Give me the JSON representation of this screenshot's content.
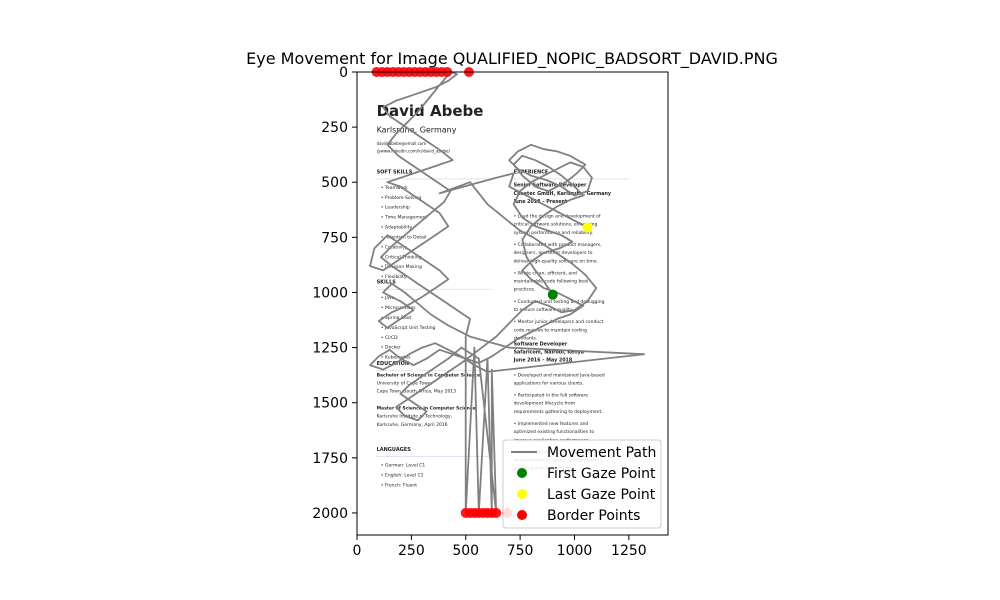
{
  "chart_data": {
    "type": "scatter",
    "title": "Eye Movement for Image QUALIFIED_NOPIC_BADSORT_DAVID.PNG",
    "xlabel": "",
    "ylabel": "",
    "xlim": [
      0,
      1430
    ],
    "ylim": [
      2100,
      0
    ],
    "x_ticks": [
      0,
      250,
      500,
      750,
      1000,
      1250
    ],
    "y_ticks": [
      0,
      250,
      500,
      750,
      1000,
      1250,
      1500,
      1750,
      2000
    ],
    "x_tick_labels": [
      "0",
      "250",
      "500",
      "750",
      "1000",
      "1250"
    ],
    "y_tick_labels": [
      "0",
      "250",
      "500",
      "750",
      "1000",
      "1250",
      "1500",
      "1750",
      "2000"
    ],
    "grid": false,
    "legend_position": "lower-right",
    "legend": [
      "Movement Path",
      "First Gaze Point",
      "Last Gaze Point",
      "Border Points"
    ],
    "colors": {
      "path": "#808080",
      "first": "#008000",
      "last": "#ffff00",
      "border": "#ff0000",
      "accent_text": "#5b7cc4"
    },
    "background_image": {
      "extent_x": [
        0,
        1430
      ],
      "extent_y": [
        0,
        2100
      ],
      "header_name": "David Abebe",
      "header_location": "Karlsruhe, Germany",
      "contact_lines": [
        "david.abebe@email.com",
        "@www.linkedin.com/in/david_abebe/"
      ],
      "sections": [
        {
          "heading": "SOFT SKILLS",
          "x": 90,
          "y": 460,
          "items": [
            "Teamwork",
            "Problem-Solving",
            "Leadership",
            "Time Management",
            "Adaptability",
            "Attention to Detail",
            "Creativity",
            "Critical Thinking",
            "Decision Making",
            "Flexibility"
          ]
        },
        {
          "heading": "SKILLS",
          "x": 90,
          "y": 960,
          "items": [
            "Java",
            "Microservices",
            "Spring Boot",
            "JavaScript Unit Testing",
            "CI/CD",
            "Docker",
            "Kubernetes"
          ]
        },
        {
          "heading": "EDUCATION",
          "x": 90,
          "y": 1330,
          "items": []
        },
        {
          "heading": "LANGUAGES",
          "x": 90,
          "y": 1720,
          "items": [
            "German: Level C1",
            "English: Level C1",
            "French: Fluent"
          ]
        },
        {
          "heading": "EXPERIENCE",
          "x": 720,
          "y": 460,
          "items": []
        }
      ],
      "education_lines": [
        "Bachelor of Science in Computer Science",
        "University of Cape Town,",
        "Cape Town, South Africa, May 2013",
        "Master of Science in Computer Science",
        "Karlsruhe Institute of Technology,",
        "Karlsruhe, Germany, April 2016"
      ],
      "experience_blocks": [
        {
          "title": "Senior Software Developer",
          "company": "Cheetec GmbH, Karlsruhe, Germany",
          "dates": "June 2018 – Present",
          "y": 520,
          "bullets": [
            "Lead the design and development of critical software solutions, enhancing system performance and reliability.",
            "Collaborated with product managers, designers, and other developers to deliver high-quality software on time.",
            "Wrote clean, efficient, and maintainable code following best practices.",
            "Conducted unit testing and debugging to ensure software quality.",
            "Mentor junior developers and conduct code reviews to maintain coding standards."
          ]
        },
        {
          "title": "Software Developer",
          "company": "Safaricom, Nairobi, Kenya",
          "dates": "June 2016 – May 2018",
          "y": 1240,
          "bullets": [
            "Developed and maintained Java-based applications for various clients.",
            "Participated in the full software development lifecycle from requirements gathering to deployment.",
            "Implemented new features and optimized existing functionalities to improve application performance.",
            "Worked closely with the QA team and environments to design and implement planning and deployment."
          ]
        }
      ]
    },
    "first_point": {
      "x": 900,
      "y": 1010
    },
    "last_point": {
      "x": 1060,
      "y": 705
    },
    "border_points": [
      {
        "x": 90,
        "y": 0
      },
      {
        "x": 115,
        "y": 0
      },
      {
        "x": 140,
        "y": 0
      },
      {
        "x": 165,
        "y": 0
      },
      {
        "x": 190,
        "y": 0
      },
      {
        "x": 215,
        "y": 0
      },
      {
        "x": 240,
        "y": 0
      },
      {
        "x": 265,
        "y": 0
      },
      {
        "x": 290,
        "y": 0
      },
      {
        "x": 315,
        "y": 0
      },
      {
        "x": 340,
        "y": 0
      },
      {
        "x": 365,
        "y": 0
      },
      {
        "x": 390,
        "y": 0
      },
      {
        "x": 415,
        "y": 0
      },
      {
        "x": 515,
        "y": 0
      },
      {
        "x": 500,
        "y": 2000
      },
      {
        "x": 520,
        "y": 2000
      },
      {
        "x": 540,
        "y": 2000
      },
      {
        "x": 560,
        "y": 2000
      },
      {
        "x": 580,
        "y": 2000
      },
      {
        "x": 600,
        "y": 2000
      },
      {
        "x": 620,
        "y": 2000
      },
      {
        "x": 640,
        "y": 2000
      },
      {
        "x": 690,
        "y": 2000
      }
    ],
    "path": [
      [
        900,
        1010
      ],
      [
        860,
        950
      ],
      [
        820,
        900
      ],
      [
        780,
        840
      ],
      [
        760,
        760
      ],
      [
        800,
        700
      ],
      [
        860,
        650
      ],
      [
        920,
        610
      ],
      [
        980,
        580
      ],
      [
        1040,
        560
      ],
      [
        1000,
        520
      ],
      [
        940,
        470
      ],
      [
        880,
        430
      ],
      [
        820,
        400
      ],
      [
        760,
        380
      ],
      [
        720,
        420
      ],
      [
        760,
        470
      ],
      [
        820,
        520
      ],
      [
        880,
        540
      ],
      [
        960,
        500
      ],
      [
        1010,
        460
      ],
      [
        1050,
        420
      ],
      [
        980,
        380
      ],
      [
        920,
        360
      ],
      [
        860,
        350
      ],
      [
        800,
        330
      ],
      [
        740,
        360
      ],
      [
        700,
        400
      ],
      [
        740,
        440
      ],
      [
        800,
        470
      ],
      [
        870,
        490
      ],
      [
        940,
        520
      ],
      [
        1000,
        560
      ],
      [
        1060,
        540
      ],
      [
        1080,
        480
      ],
      [
        1040,
        430
      ],
      [
        980,
        410
      ],
      [
        920,
        440
      ],
      [
        860,
        470
      ],
      [
        800,
        500
      ],
      [
        750,
        540
      ],
      [
        720,
        600
      ],
      [
        760,
        660
      ],
      [
        820,
        700
      ],
      [
        880,
        720
      ],
      [
        940,
        740
      ],
      [
        990,
        770
      ],
      [
        930,
        800
      ],
      [
        860,
        820
      ],
      [
        800,
        860
      ],
      [
        760,
        900
      ],
      [
        800,
        940
      ],
      [
        860,
        980
      ],
      [
        920,
        1000
      ],
      [
        980,
        1030
      ],
      [
        1040,
        1060
      ],
      [
        980,
        1100
      ],
      [
        920,
        1120
      ],
      [
        860,
        1150
      ],
      [
        800,
        1180
      ],
      [
        740,
        1210
      ],
      [
        680,
        1250
      ],
      [
        620,
        1290
      ],
      [
        560,
        1320
      ],
      [
        500,
        1300
      ],
      [
        440,
        1280
      ],
      [
        380,
        1260
      ],
      [
        320,
        1300
      ],
      [
        260,
        1330
      ],
      [
        200,
        1300
      ],
      [
        150,
        1260
      ],
      [
        100,
        1290
      ],
      [
        60,
        1330
      ],
      [
        120,
        1350
      ],
      [
        180,
        1320
      ],
      [
        240,
        1280
      ],
      [
        300,
        1250
      ],
      [
        360,
        1230
      ],
      [
        420,
        1260
      ],
      [
        480,
        1290
      ],
      [
        540,
        1330
      ],
      [
        600,
        1360
      ],
      [
        1320,
        1280
      ],
      [
        700,
        1250
      ],
      [
        520,
        1200
      ],
      [
        420,
        1150
      ],
      [
        340,
        1100
      ],
      [
        280,
        1050
      ],
      [
        220,
        1000
      ],
      [
        160,
        960
      ],
      [
        120,
        1000
      ],
      [
        200,
        1040
      ],
      [
        260,
        1080
      ],
      [
        200,
        1120
      ],
      [
        140,
        1160
      ],
      [
        100,
        1130
      ],
      [
        160,
        1090
      ],
      [
        230,
        1060
      ],
      [
        300,
        1020
      ],
      [
        360,
        980
      ],
      [
        420,
        940
      ],
      [
        380,
        900
      ],
      [
        320,
        860
      ],
      [
        260,
        820
      ],
      [
        200,
        780
      ],
      [
        140,
        740
      ],
      [
        80,
        800
      ],
      [
        60,
        880
      ],
      [
        120,
        900
      ],
      [
        180,
        860
      ],
      [
        240,
        820
      ],
      [
        300,
        780
      ],
      [
        360,
        740
      ],
      [
        420,
        700
      ],
      [
        380,
        640
      ],
      [
        320,
        600
      ],
      [
        260,
        560
      ],
      [
        200,
        520
      ],
      [
        140,
        500
      ],
      [
        200,
        480
      ],
      [
        260,
        460
      ],
      [
        320,
        440
      ],
      [
        380,
        420
      ],
      [
        440,
        400
      ],
      [
        390,
        360
      ],
      [
        330,
        320
      ],
      [
        270,
        280
      ],
      [
        210,
        240
      ],
      [
        150,
        200
      ],
      [
        120,
        160
      ],
      [
        180,
        130
      ],
      [
        240,
        110
      ],
      [
        300,
        90
      ],
      [
        360,
        70
      ],
      [
        420,
        40
      ],
      [
        460,
        10
      ],
      [
        430,
        0
      ],
      [
        380,
        60
      ],
      [
        330,
        120
      ],
      [
        280,
        180
      ],
      [
        230,
        230
      ],
      [
        180,
        280
      ],
      [
        140,
        330
      ],
      [
        190,
        380
      ],
      [
        250,
        420
      ],
      [
        310,
        460
      ],
      [
        370,
        500
      ],
      [
        430,
        540
      ],
      [
        400,
        590
      ],
      [
        340,
        640
      ],
      [
        280,
        690
      ],
      [
        220,
        740
      ],
      [
        160,
        790
      ],
      [
        110,
        840
      ],
      [
        160,
        880
      ],
      [
        220,
        920
      ],
      [
        280,
        960
      ],
      [
        340,
        1000
      ],
      [
        400,
        1040
      ],
      [
        460,
        1080
      ],
      [
        520,
        1120
      ],
      [
        500,
        1200
      ],
      [
        500,
        2000
      ],
      [
        540,
        1250
      ],
      [
        560,
        2000
      ],
      [
        600,
        1300
      ],
      [
        620,
        2000
      ],
      [
        620,
        1350
      ],
      [
        640,
        2000
      ],
      [
        560,
        1300
      ],
      [
        480,
        1250
      ],
      [
        420,
        1300
      ],
      [
        360,
        1340
      ],
      [
        300,
        1380
      ],
      [
        240,
        1420
      ],
      [
        200,
        1460
      ],
      [
        260,
        1500
      ],
      [
        320,
        1540
      ],
      [
        280,
        1580
      ],
      [
        220,
        1560
      ],
      [
        180,
        1520
      ],
      [
        240,
        1480
      ],
      [
        300,
        1440
      ],
      [
        360,
        1400
      ],
      [
        420,
        1360
      ],
      [
        480,
        1320
      ],
      [
        560,
        1260
      ],
      [
        640,
        1200
      ],
      [
        700,
        1140
      ],
      [
        760,
        1080
      ],
      [
        820,
        1040
      ],
      [
        880,
        1060
      ],
      [
        940,
        1090
      ],
      [
        1000,
        1080
      ],
      [
        1060,
        1040
      ],
      [
        1100,
        980
      ],
      [
        1050,
        920
      ],
      [
        990,
        870
      ],
      [
        930,
        830
      ],
      [
        870,
        790
      ],
      [
        810,
        750
      ],
      [
        750,
        720
      ],
      [
        700,
        680
      ],
      [
        650,
        640
      ],
      [
        600,
        600
      ],
      [
        520,
        500
      ],
      [
        380,
        550
      ],
      [
        640,
        480
      ],
      [
        720,
        460
      ],
      [
        700,
        520
      ],
      [
        1060,
        705
      ]
    ]
  },
  "legend_labels": {
    "path": "Movement Path",
    "first": "First Gaze Point",
    "last": "Last Gaze Point",
    "border": "Border Points"
  }
}
